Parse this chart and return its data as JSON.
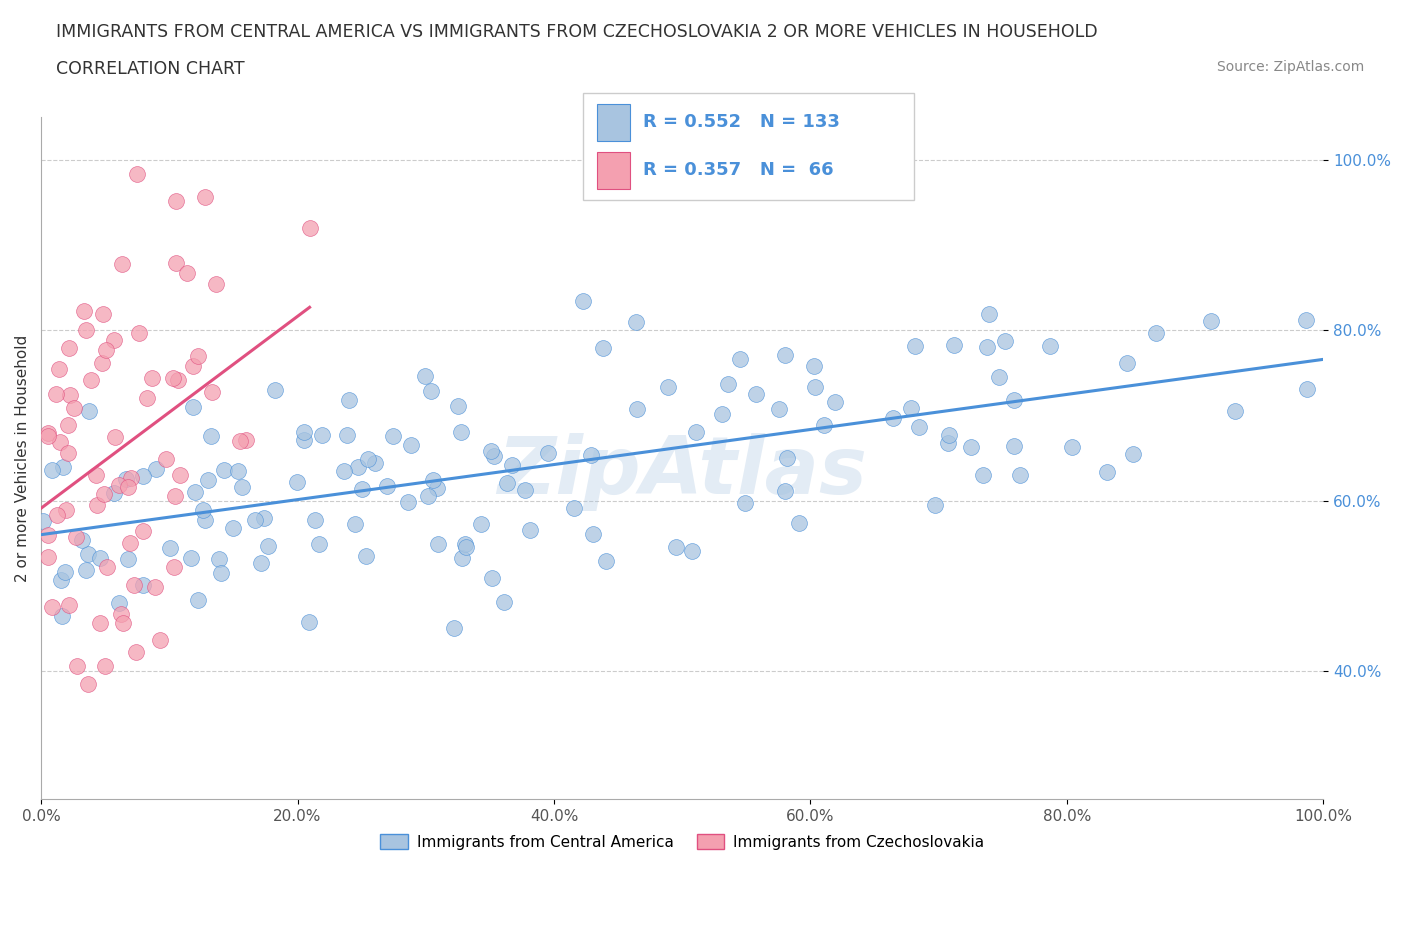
{
  "title_line1": "IMMIGRANTS FROM CENTRAL AMERICA VS IMMIGRANTS FROM CZECHOSLOVAKIA 2 OR MORE VEHICLES IN HOUSEHOLD",
  "title_line2": "CORRELATION CHART",
  "source_text": "Source: ZipAtlas.com",
  "ylabel": "2 or more Vehicles in Household",
  "xmin": 0.0,
  "xmax": 1.0,
  "ymin": 0.25,
  "ymax": 1.05,
  "xtick_labels": [
    "0.0%",
    "20.0%",
    "40.0%",
    "60.0%",
    "80.0%",
    "100.0%"
  ],
  "xtick_vals": [
    0.0,
    0.2,
    0.4,
    0.6,
    0.8,
    1.0
  ],
  "ytick_labels": [
    "40.0%",
    "60.0%",
    "80.0%",
    "100.0%"
  ],
  "ytick_vals": [
    0.4,
    0.6,
    0.8,
    1.0
  ],
  "blue_color": "#a8c4e0",
  "pink_color": "#f4a0b0",
  "blue_line_color": "#4a90d9",
  "pink_line_color": "#e05080",
  "watermark": "ZipAtlas",
  "blue_R": 0.552,
  "pink_R": 0.357,
  "blue_N": 133,
  "pink_N": 66,
  "legend_blue_text": "R = 0.552   N = 133",
  "legend_pink_text": "R = 0.357   N =  66",
  "bottom_legend_blue": "Immigrants from Central America",
  "bottom_legend_pink": "Immigrants from Czechoslovakia"
}
